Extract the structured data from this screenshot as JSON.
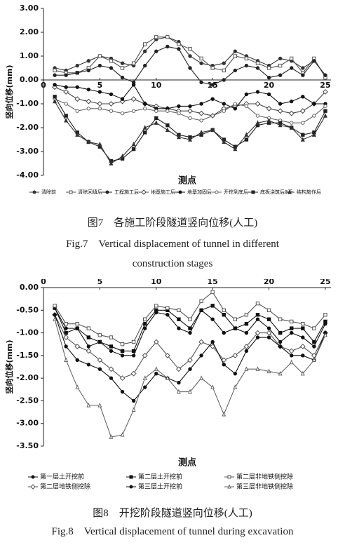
{
  "chart_data": [
    {
      "type": "line",
      "xlabel": "测点",
      "ylabel": "竖向位移(mm)",
      "caption": "图7　各施工阶段隧道竖向位移(人工)",
      "caption_en": "Fig.7　Vertical displacement of tunnel in different construction stages",
      "x": [
        1,
        2,
        3,
        4,
        5,
        6,
        7,
        8,
        9,
        10,
        11,
        12,
        13,
        14,
        15,
        16,
        17,
        18,
        19,
        20,
        21,
        22,
        23,
        24,
        25
      ],
      "xlim": [
        0,
        25.5
      ],
      "xticks": [
        0,
        5,
        10,
        15,
        20,
        25
      ],
      "ylim": [
        -4,
        3
      ],
      "yticks": [
        {
          "value": 3,
          "label": "3.00"
        },
        {
          "value": 2,
          "label": "2.00"
        },
        {
          "value": 1,
          "label": "1.00"
        },
        {
          "value": 0,
          "label": "0.00"
        },
        {
          "value": -1,
          "label": "-1.00"
        },
        {
          "value": -2,
          "label": "-2.00"
        },
        {
          "value": -3,
          "label": "-3.00"
        },
        {
          "value": -4,
          "label": "-4.00"
        }
      ],
      "legend_columns": 8,
      "series": [
        {
          "name": "清除前",
          "color": "#333333",
          "marker": "circle",
          "open": false,
          "values": [
            0.5,
            0.4,
            0.6,
            0.8,
            1.0,
            0.9,
            0.7,
            0.6,
            1.2,
            1.7,
            1.8,
            1.6,
            1.0,
            0.7,
            0.6,
            0.7,
            1.2,
            1.0,
            0.8,
            0.6,
            0.9,
            0.8,
            0.5,
            0.8,
            0.2
          ]
        },
        {
          "name": "清除回填后",
          "color": "#555555",
          "marker": "square",
          "open": true,
          "values": [
            0.4,
            0.3,
            0.3,
            0.5,
            1.0,
            0.8,
            0.5,
            0.7,
            1.5,
            1.8,
            1.8,
            1.5,
            1.3,
            0.9,
            0.5,
            0.4,
            1.0,
            0.9,
            0.7,
            0.5,
            0.6,
            0.9,
            0.3,
            0.9,
            0.1
          ]
        },
        {
          "name": "工程施工后",
          "color": "#222222",
          "marker": "circle",
          "open": false,
          "values": [
            0.2,
            0.2,
            0.3,
            0.4,
            0.6,
            0.5,
            0.1,
            -0.1,
            0.6,
            1.2,
            1.4,
            1.3,
            0.5,
            -0.1,
            -0.2,
            0.0,
            0.4,
            0.6,
            0.5,
            0.1,
            0.2,
            0.5,
            0.2,
            0.8,
            0.2
          ]
        },
        {
          "name": "地基施工后",
          "color": "#444444",
          "marker": "diamond",
          "open": true,
          "values": [
            -0.3,
            -0.5,
            -0.8,
            -0.9,
            -1.0,
            -1.0,
            -0.9,
            -0.8,
            -1.0,
            -1.1,
            -1.2,
            -1.3,
            -1.3,
            -1.4,
            -1.5,
            -1.2,
            -1.1,
            -1.0,
            -1.0,
            -1.2,
            -1.3,
            -1.4,
            -1.3,
            -1.0,
            -0.5
          ]
        },
        {
          "name": "地基加固后",
          "color": "#111111",
          "marker": "circle",
          "open": false,
          "values": [
            -0.2,
            -0.3,
            -0.3,
            -0.4,
            -0.5,
            -0.6,
            -0.8,
            -0.2,
            -1.0,
            -1.2,
            -1.2,
            -1.1,
            -1.1,
            -1.0,
            -0.8,
            -1.0,
            -1.2,
            -0.6,
            -0.5,
            -0.6,
            -1.0,
            -0.9,
            -0.7,
            -1.0,
            -1.0
          ]
        },
        {
          "name": "开挖到底后",
          "color": "#666666",
          "marker": "circle",
          "open": true,
          "values": [
            -0.8,
            -1.0,
            -1.3,
            -1.2,
            -1.2,
            -1.3,
            -1.4,
            -1.3,
            -1.2,
            -1.3,
            -1.3,
            -1.4,
            -1.6,
            -1.7,
            -1.5,
            -1.3,
            -1.0,
            -1.1,
            -1.5,
            -1.6,
            -1.7,
            -1.8,
            -1.8,
            -1.5,
            -1.1
          ]
        },
        {
          "name": "底板浇筑后3天",
          "color": "#222222",
          "marker": "square",
          "open": false,
          "values": [
            -0.7,
            -1.5,
            -2.2,
            -2.6,
            -2.8,
            -3.4,
            -3.3,
            -2.9,
            -2.2,
            -1.6,
            -1.9,
            -2.3,
            -2.4,
            -2.3,
            -2.1,
            -2.5,
            -2.8,
            -2.5,
            -1.9,
            -1.8,
            -1.8,
            -2.0,
            -2.3,
            -2.2,
            -1.3
          ]
        },
        {
          "name": "结构施作后",
          "color": "#333333",
          "marker": "triangle",
          "open": false,
          "values": [
            -0.9,
            -1.7,
            -2.3,
            -2.6,
            -2.7,
            -3.5,
            -3.2,
            -2.7,
            -2.0,
            -1.8,
            -2.1,
            -2.4,
            -2.5,
            -2.2,
            -2.1,
            -2.6,
            -2.9,
            -2.3,
            -1.8,
            -1.7,
            -1.9,
            -2.0,
            -2.5,
            -2.3,
            -1.5
          ]
        }
      ]
    },
    {
      "type": "line",
      "xlabel": "测点",
      "ylabel": "竖向位移(mm)",
      "caption": "图8　开挖阶段隧道竖向位移(人工)",
      "caption_en": "Fig.8　Vertical displacement of tunnel during excavation",
      "x": [
        1,
        2,
        3,
        4,
        5,
        6,
        7,
        8,
        9,
        10,
        11,
        12,
        13,
        14,
        15,
        16,
        17,
        18,
        19,
        20,
        21,
        22,
        23,
        24,
        25
      ],
      "xlim": [
        0,
        25.5
      ],
      "xticks": [
        0,
        5,
        10,
        15,
        20,
        25
      ],
      "ylim": [
        -3.5,
        0
      ],
      "yticks": [
        {
          "value": 0,
          "label": "0.00"
        },
        {
          "value": -0.5,
          "label": "-0.50"
        },
        {
          "value": -1,
          "label": "-1.00"
        },
        {
          "value": -1.5,
          "label": "-1.50"
        },
        {
          "value": -2,
          "label": "-2.00"
        },
        {
          "value": -2.5,
          "label": "-2.50"
        },
        {
          "value": -3,
          "label": "-3.00"
        },
        {
          "value": -3.5,
          "label": "-3.50"
        }
      ],
      "legend_columns": 3,
      "series": [
        {
          "name": "第一层土开挖前",
          "color": "#111111",
          "marker": "circle",
          "open": false,
          "values": [
            -0.45,
            -0.9,
            -0.9,
            -1.3,
            -1.2,
            -1.4,
            -1.5,
            -1.5,
            -0.9,
            -0.55,
            -0.6,
            -0.9,
            -1.0,
            -0.5,
            -0.7,
            -1.0,
            -0.9,
            -1.0,
            -0.7,
            -0.9,
            -1.2,
            -1.0,
            -1.1,
            -1.3,
            -0.8
          ]
        },
        {
          "name": "第二层土开挖前",
          "color": "#111111",
          "marker": "square",
          "open": false,
          "values": [
            -0.45,
            -1.0,
            -0.9,
            -1.1,
            -1.2,
            -1.3,
            -1.4,
            -1.4,
            -0.8,
            -0.5,
            -0.5,
            -0.7,
            -0.9,
            -0.5,
            -0.4,
            -0.6,
            -0.9,
            -0.8,
            -0.6,
            -0.7,
            -1.0,
            -0.9,
            -0.9,
            -1.2,
            -0.75
          ]
        },
        {
          "name": "第二层非地铁侧挖除",
          "color": "#555555",
          "marker": "square",
          "open": true,
          "values": [
            -0.4,
            -0.8,
            -0.8,
            -0.9,
            -1.05,
            -1.1,
            -1.25,
            -1.2,
            -0.7,
            -0.4,
            -0.45,
            -0.5,
            -0.7,
            -0.3,
            -0.1,
            -0.5,
            -0.7,
            -0.6,
            -0.35,
            -0.5,
            -0.7,
            -0.75,
            -0.8,
            -0.9,
            -0.6
          ]
        },
        {
          "name": "第二层地铁侧挖除",
          "color": "#555555",
          "marker": "diamond",
          "open": true,
          "values": [
            -0.6,
            -1.1,
            -1.3,
            -1.4,
            -1.6,
            -1.8,
            -2.0,
            -1.9,
            -1.5,
            -1.2,
            -1.5,
            -1.8,
            -1.6,
            -1.2,
            -1.3,
            -1.6,
            -1.5,
            -1.3,
            -1.0,
            -1.0,
            -1.3,
            -1.4,
            -1.3,
            -1.5,
            -1.0
          ]
        },
        {
          "name": "第三层土开挖前",
          "color": "#111111",
          "marker": "circle",
          "open": false,
          "values": [
            -0.6,
            -1.3,
            -1.6,
            -1.7,
            -1.8,
            -2.0,
            -2.3,
            -2.5,
            -2.2,
            -1.9,
            -2.0,
            -2.1,
            -1.8,
            -1.5,
            -1.2,
            -1.7,
            -1.9,
            -1.4,
            -1.1,
            -1.1,
            -1.3,
            -1.5,
            -1.5,
            -1.6,
            -1.0
          ]
        },
        {
          "name": "第三层非地铁侧挖除",
          "color": "#666666",
          "marker": "triangle",
          "open": true,
          "values": [
            -0.7,
            -1.6,
            -2.2,
            -2.6,
            -2.6,
            -3.3,
            -3.25,
            -2.7,
            -2.0,
            -1.8,
            -2.0,
            -2.3,
            -2.3,
            -2.0,
            -2.2,
            -2.8,
            -2.2,
            -1.8,
            -1.8,
            -1.85,
            -1.9,
            -1.65,
            -1.9,
            -1.6,
            -1.05
          ]
        }
      ]
    }
  ]
}
